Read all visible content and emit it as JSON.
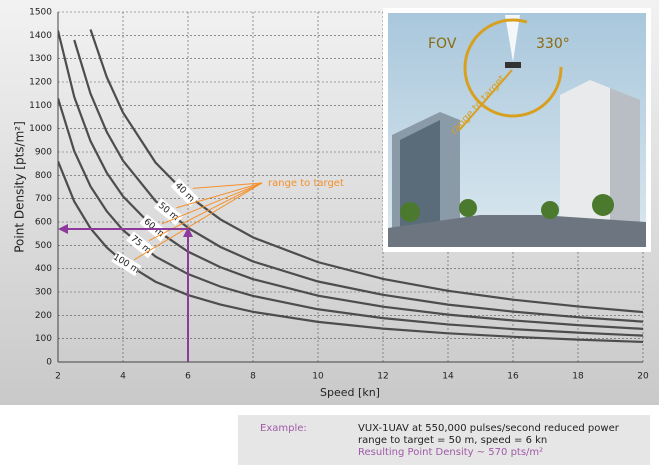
{
  "chart_data": {
    "type": "line",
    "x_label": "Speed [kn]",
    "y_label": "Point Density [pts/m²]",
    "x": [
      2,
      2.5,
      3,
      3.5,
      4,
      5,
      6,
      7,
      8,
      10,
      12,
      14,
      16,
      18,
      20
    ],
    "series": [
      {
        "name": "40 m",
        "color": "#4d4d4d",
        "values": [
          null,
          null,
          1425,
          1221,
          1069,
          855,
          713,
          611,
          534,
          428,
          356,
          305,
          267,
          238,
          214
        ]
      },
      {
        "name": "50 m",
        "color": "#4d4d4d",
        "values": [
          null,
          1380,
          1150,
          986,
          863,
          690,
          575,
          493,
          431,
          345,
          288,
          246,
          216,
          192,
          173
        ]
      },
      {
        "name": "60 m",
        "color": "#4d4d4d",
        "values": [
          1420,
          1136,
          947,
          811,
          710,
          568,
          473,
          406,
          355,
          284,
          237,
          203,
          178,
          158,
          142
        ]
      },
      {
        "name": "75 m",
        "color": "#4d4d4d",
        "values": [
          1130,
          904,
          753,
          646,
          565,
          452,
          377,
          323,
          283,
          226,
          188,
          161,
          141,
          126,
          113
        ]
      },
      {
        "name": "100 m",
        "color": "#4d4d4d",
        "values": [
          860,
          688,
          573,
          491,
          430,
          344,
          287,
          246,
          215,
          172,
          143,
          123,
          108,
          96,
          86
        ]
      }
    ],
    "xlim": [
      2,
      20
    ],
    "xticks": [
      2,
      4,
      6,
      8,
      10,
      12,
      14,
      16,
      18,
      20
    ],
    "ylim": [
      0,
      1500
    ],
    "yticks": [
      0,
      100,
      200,
      300,
      400,
      500,
      600,
      700,
      800,
      900,
      1000,
      1100,
      1200,
      1300,
      1400,
      1500
    ],
    "grid": true,
    "annotation": "range to target",
    "annotation_color": "#f5902a",
    "highlight": {
      "x": 6,
      "y": 570,
      "color": "#8e3a9c"
    },
    "inset": {
      "fov": "FOV",
      "angle": "330°",
      "range": "range to target"
    },
    "example": {
      "label": "Example:",
      "line1": "VUX-1UAV at 550,000 pulses/second reduced power",
      "line2": "range to target = 50 m, speed = 6 kn",
      "result": "Resulting Point Density ~ 570 pts/m²"
    }
  }
}
